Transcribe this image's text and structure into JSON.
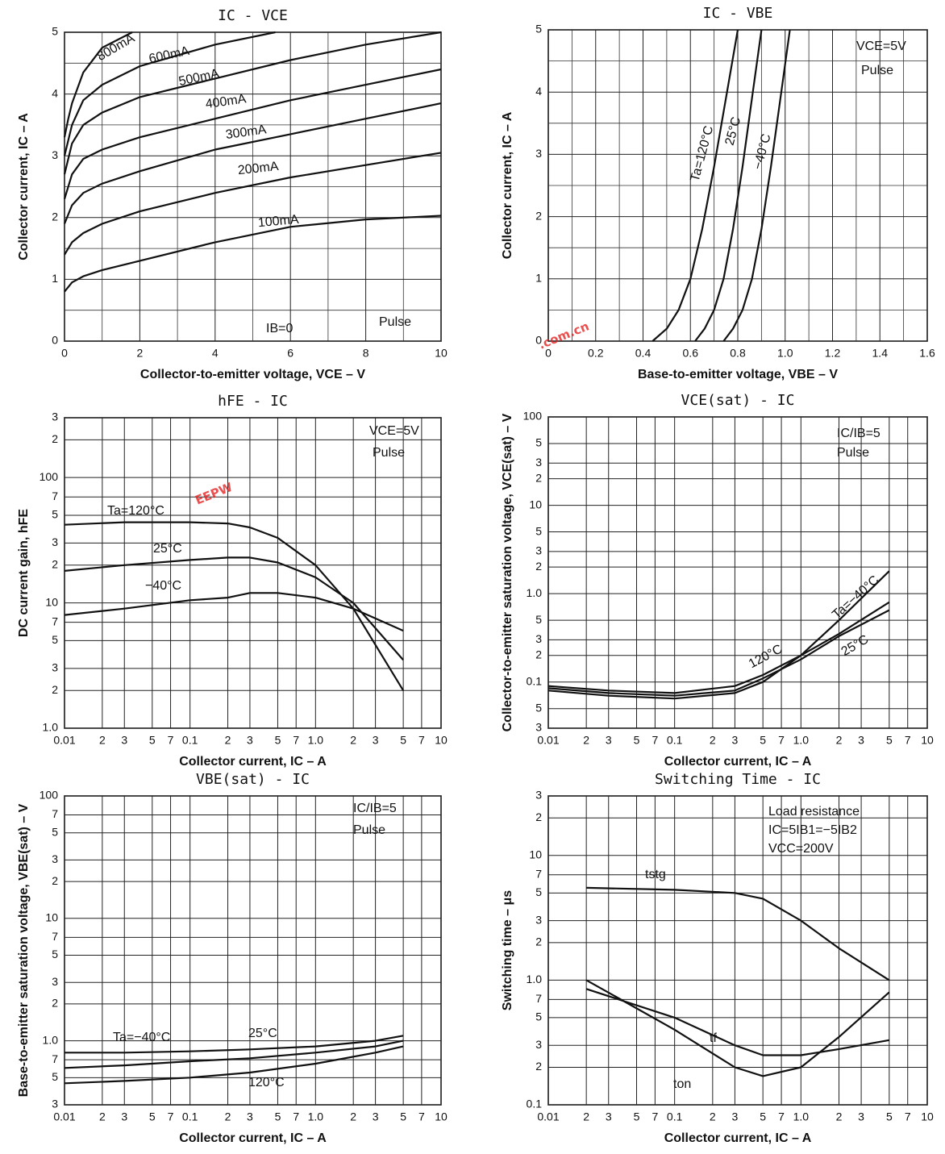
{
  "chart_data": [
    {
      "type": "line",
      "title": "IC - VCE",
      "x_label": "Collector-to-emitter voltage, VCE – V",
      "y_label": "Collector current, IC – A",
      "xlim": [
        0,
        10
      ],
      "ylim": [
        0,
        5
      ],
      "xticks": [
        0,
        2,
        4,
        6,
        8,
        10
      ],
      "yticks": [
        0,
        1,
        2,
        3,
        4,
        5
      ],
      "minor_xticks": [
        1,
        3,
        5,
        7,
        9
      ],
      "minor_yticks": [
        0.5,
        1.5,
        2.5,
        3.5,
        4.5
      ],
      "grid": true,
      "color": "#111111",
      "annotations": [
        "IB=0",
        "Pulse"
      ],
      "series": [
        {
          "name": "800mA",
          "color": "#111111",
          "x": [
            0,
            0.1,
            0.2,
            0.5,
            1,
            1.8
          ],
          "values": [
            3.3,
            3.6,
            3.85,
            4.35,
            4.75,
            5
          ]
        },
        {
          "name": "600mA",
          "color": "#111111",
          "x": [
            0,
            0.2,
            0.5,
            1,
            2,
            4,
            5.6
          ],
          "values": [
            3.0,
            3.5,
            3.9,
            4.15,
            4.45,
            4.8,
            5
          ]
        },
        {
          "name": "500mA",
          "color": "#111111",
          "x": [
            0,
            0.2,
            0.5,
            1,
            2,
            4,
            6,
            8,
            10
          ],
          "values": [
            2.7,
            3.2,
            3.5,
            3.7,
            3.95,
            4.25,
            4.55,
            4.8,
            5.0
          ]
        },
        {
          "name": "400mA",
          "color": "#111111",
          "x": [
            0,
            0.2,
            0.5,
            1,
            2,
            4,
            6,
            8,
            10
          ],
          "values": [
            2.3,
            2.7,
            2.95,
            3.1,
            3.3,
            3.6,
            3.9,
            4.15,
            4.4
          ]
        },
        {
          "name": "300mA",
          "color": "#111111",
          "x": [
            0,
            0.2,
            0.5,
            1,
            2,
            4,
            6,
            8,
            10
          ],
          "values": [
            1.9,
            2.2,
            2.4,
            2.55,
            2.75,
            3.1,
            3.35,
            3.6,
            3.85
          ]
        },
        {
          "name": "200mA",
          "color": "#111111",
          "x": [
            0,
            0.2,
            0.5,
            1,
            2,
            4,
            6,
            8,
            10
          ],
          "values": [
            1.4,
            1.6,
            1.75,
            1.9,
            2.1,
            2.4,
            2.65,
            2.85,
            3.05
          ]
        },
        {
          "name": "100mA",
          "color": "#111111",
          "x": [
            0,
            0.2,
            0.5,
            1,
            2,
            4,
            6,
            8,
            10
          ],
          "values": [
            0.8,
            0.95,
            1.05,
            1.15,
            1.3,
            1.6,
            1.85,
            1.97,
            2.03
          ]
        }
      ]
    },
    {
      "type": "line",
      "title": "IC - VBE",
      "x_label": "Base-to-emitter voltage, VBE – V",
      "y_label": "Collector current, IC – A",
      "xlim": [
        0,
        1.6
      ],
      "ylim": [
        0,
        5
      ],
      "xticks": [
        0,
        0.2,
        0.4,
        0.6,
        0.8,
        {
          "value": 1,
          "label": "1.0"
        },
        1.2,
        1.4,
        1.6
      ],
      "yticks": [
        0,
        1,
        2,
        3,
        4,
        5
      ],
      "minor_xticks": [
        0.1,
        0.3,
        0.5,
        0.7,
        0.9,
        1.1,
        1.3,
        1.5
      ],
      "minor_yticks": [
        0.5,
        1.5,
        2.5,
        3.5,
        4.5
      ],
      "grid": true,
      "color": "#111111",
      "annotations": [
        "VCE=5V",
        "Pulse"
      ],
      "series": [
        {
          "name": "Ta=120°C",
          "color": "#111111",
          "x": [
            0.44,
            0.5,
            0.55,
            0.6,
            0.65,
            0.7,
            0.75,
            0.8
          ],
          "values": [
            0,
            0.2,
            0.5,
            1,
            1.8,
            2.8,
            3.9,
            5
          ]
        },
        {
          "name": "25°C",
          "color": "#111111",
          "x": [
            0.62,
            0.66,
            0.7,
            0.74,
            0.78,
            0.82,
            0.86,
            0.9
          ],
          "values": [
            0,
            0.2,
            0.5,
            1,
            1.8,
            2.8,
            3.9,
            5
          ]
        },
        {
          "name": "−40°C",
          "color": "#111111",
          "x": [
            0.74,
            0.78,
            0.82,
            0.86,
            0.9,
            0.94,
            0.98,
            1.02
          ],
          "values": [
            0,
            0.2,
            0.5,
            1,
            1.8,
            2.8,
            3.9,
            5
          ]
        }
      ]
    },
    {
      "type": "line",
      "title": "hFE - IC",
      "x_label": "Collector current, IC – A",
      "y_label": "DC current gain, hFE",
      "log_x": true,
      "log_y": true,
      "xlim": [
        0.01,
        10
      ],
      "ylim": [
        1,
        300
      ],
      "xticks": [
        0.01,
        {
          "value": 0.02,
          "label": "2"
        },
        {
          "value": 0.03,
          "label": "3"
        },
        {
          "value": 0.05,
          "label": "5"
        },
        {
          "value": 0.07,
          "label": "7"
        },
        0.1,
        {
          "value": 0.2,
          "label": "2"
        },
        {
          "value": 0.3,
          "label": "3"
        },
        {
          "value": 0.5,
          "label": "5"
        },
        {
          "value": 0.7,
          "label": "7"
        },
        {
          "value": 1,
          "label": "1.0"
        },
        2,
        3,
        5,
        7,
        10
      ],
      "yticks": [
        {
          "value": 1,
          "label": "1.0"
        },
        2,
        3,
        5,
        7,
        10,
        {
          "value": 20,
          "label": "2"
        },
        {
          "value": 30,
          "label": "3"
        },
        {
          "value": 50,
          "label": "5"
        },
        {
          "value": 70,
          "label": "7"
        },
        100,
        {
          "value": 200,
          "label": "2"
        },
        {
          "value": 300,
          "label": "3"
        }
      ],
      "grid": true,
      "color": "#111111",
      "annotations": [
        "VCE=5V",
        "Pulse"
      ],
      "series": [
        {
          "name": "Ta=120°C",
          "color": "#111111",
          "x": [
            0.01,
            0.03,
            0.1,
            0.2,
            0.3,
            0.5,
            1,
            2,
            5
          ],
          "values": [
            42,
            44,
            44,
            43,
            40,
            33,
            20,
            9,
            2
          ]
        },
        {
          "name": "25°C",
          "color": "#111111",
          "x": [
            0.01,
            0.03,
            0.1,
            0.2,
            0.3,
            0.5,
            1,
            2,
            5
          ],
          "values": [
            18,
            20,
            22,
            23,
            23,
            21,
            16,
            10,
            3.5
          ]
        },
        {
          "name": "−40°C",
          "color": "#111111",
          "x": [
            0.01,
            0.03,
            0.1,
            0.2,
            0.3,
            0.5,
            1,
            2,
            5
          ],
          "values": [
            8,
            9,
            10.5,
            11,
            12,
            12,
            11,
            9,
            6
          ]
        }
      ]
    },
    {
      "type": "line",
      "title": "VCE(sat) - IC",
      "x_label": "Collector current, IC – A",
      "y_label": "Collector-to-emitter saturation voltage, VCE(sat) – V",
      "log_x": true,
      "log_y": true,
      "xlim": [
        0.01,
        10
      ],
      "ylim": [
        0.03,
        100
      ],
      "xticks": [
        0.01,
        {
          "value": 0.02,
          "label": "2"
        },
        {
          "value": 0.03,
          "label": "3"
        },
        {
          "value": 0.05,
          "label": "5"
        },
        {
          "value": 0.07,
          "label": "7"
        },
        0.1,
        {
          "value": 0.2,
          "label": "2"
        },
        {
          "value": 0.3,
          "label": "3"
        },
        {
          "value": 0.5,
          "label": "5"
        },
        {
          "value": 0.7,
          "label": "7"
        },
        {
          "value": 1,
          "label": "1.0"
        },
        2,
        3,
        5,
        7,
        10
      ],
      "yticks": [
        {
          "value": 0.03,
          "label": "3"
        },
        {
          "value": 0.05,
          "label": "5"
        },
        0.1,
        {
          "value": 0.2,
          "label": "2"
        },
        {
          "value": 0.3,
          "label": "3"
        },
        {
          "value": 0.5,
          "label": "5"
        },
        {
          "value": 1,
          "label": "1.0"
        },
        2,
        3,
        5,
        10,
        {
          "value": 20,
          "label": "2"
        },
        {
          "value": 30,
          "label": "3"
        },
        {
          "value": 50,
          "label": "5"
        },
        100
      ],
      "grid": true,
      "color": "#111111",
      "annotations": [
        "IC/IB=5",
        "Pulse"
      ],
      "series": [
        {
          "name": "Ta=−40°C",
          "color": "#111111",
          "x": [
            0.01,
            0.03,
            0.1,
            0.3,
            0.5,
            1,
            2,
            5
          ],
          "values": [
            0.08,
            0.07,
            0.065,
            0.075,
            0.1,
            0.2,
            0.5,
            1.8
          ]
        },
        {
          "name": "120°C",
          "color": "#111111",
          "x": [
            0.01,
            0.03,
            0.1,
            0.3,
            0.5,
            1,
            2,
            5
          ],
          "values": [
            0.09,
            0.08,
            0.075,
            0.09,
            0.12,
            0.2,
            0.35,
            0.8
          ]
        },
        {
          "name": "25°C",
          "color": "#111111",
          "x": [
            0.01,
            0.03,
            0.1,
            0.3,
            0.5,
            1,
            2,
            5
          ],
          "values": [
            0.085,
            0.075,
            0.07,
            0.08,
            0.11,
            0.18,
            0.33,
            0.65
          ]
        }
      ]
    },
    {
      "type": "line",
      "title": "VBE(sat) - IC",
      "x_label": "Collector current, IC – A",
      "y_label": "Base-to-emitter saturation voltage, VBE(sat) – V",
      "log_x": true,
      "log_y": true,
      "xlim": [
        0.01,
        10
      ],
      "ylim": [
        0.3,
        100
      ],
      "xticks": [
        0.01,
        {
          "value": 0.02,
          "label": "2"
        },
        {
          "value": 0.03,
          "label": "3"
        },
        {
          "value": 0.05,
          "label": "5"
        },
        {
          "value": 0.07,
          "label": "7"
        },
        0.1,
        {
          "value": 0.2,
          "label": "2"
        },
        {
          "value": 0.3,
          "label": "3"
        },
        {
          "value": 0.5,
          "label": "5"
        },
        {
          "value": 0.7,
          "label": "7"
        },
        {
          "value": 1,
          "label": "1.0"
        },
        2,
        3,
        5,
        7,
        10
      ],
      "yticks": [
        {
          "value": 0.3,
          "label": "3"
        },
        {
          "value": 0.5,
          "label": "5"
        },
        {
          "value": 0.7,
          "label": "7"
        },
        {
          "value": 1,
          "label": "1.0"
        },
        2,
        3,
        5,
        7,
        10,
        {
          "value": 20,
          "label": "2"
        },
        {
          "value": 30,
          "label": "3"
        },
        {
          "value": 50,
          "label": "5"
        },
        {
          "value": 70,
          "label": "7"
        },
        100
      ],
      "grid": true,
      "color": "#111111",
      "annotations": [
        "IC/IB=5",
        "Pulse"
      ],
      "series": [
        {
          "name": "Ta=−40°C",
          "color": "#111111",
          "x": [
            0.01,
            0.03,
            0.1,
            0.3,
            1,
            3,
            5
          ],
          "values": [
            0.8,
            0.8,
            0.82,
            0.85,
            0.9,
            1.0,
            1.1
          ]
        },
        {
          "name": "25°C",
          "color": "#111111",
          "x": [
            0.01,
            0.03,
            0.1,
            0.3,
            1,
            3,
            5
          ],
          "values": [
            0.6,
            0.63,
            0.68,
            0.72,
            0.8,
            0.9,
            1.0
          ]
        },
        {
          "name": "120°C",
          "color": "#111111",
          "x": [
            0.01,
            0.03,
            0.1,
            0.3,
            1,
            3,
            5
          ],
          "values": [
            0.45,
            0.47,
            0.5,
            0.55,
            0.65,
            0.8,
            0.9
          ]
        }
      ]
    },
    {
      "type": "line",
      "title": "Switching Time - IC",
      "x_label": "Collector current, IC – A",
      "y_label": "Switching time – μs",
      "log_x": true,
      "log_y": true,
      "xlim": [
        0.01,
        10
      ],
      "ylim": [
        0.1,
        30
      ],
      "xticks": [
        0.01,
        {
          "value": 0.02,
          "label": "2"
        },
        {
          "value": 0.03,
          "label": "3"
        },
        {
          "value": 0.05,
          "label": "5"
        },
        {
          "value": 0.07,
          "label": "7"
        },
        0.1,
        {
          "value": 0.2,
          "label": "2"
        },
        {
          "value": 0.3,
          "label": "3"
        },
        {
          "value": 0.5,
          "label": "5"
        },
        {
          "value": 0.7,
          "label": "7"
        },
        {
          "value": 1,
          "label": "1.0"
        },
        2,
        3,
        5,
        7,
        10
      ],
      "yticks": [
        0.1,
        {
          "value": 0.2,
          "label": "2"
        },
        {
          "value": 0.3,
          "label": "3"
        },
        {
          "value": 0.5,
          "label": "5"
        },
        {
          "value": 0.7,
          "label": "7"
        },
        {
          "value": 1,
          "label": "1.0"
        },
        2,
        3,
        5,
        7,
        10,
        {
          "value": 20,
          "label": "2"
        },
        {
          "value": 30,
          "label": "3"
        }
      ],
      "grid": true,
      "color": "#111111",
      "annotations": [
        "Load resistance",
        "IC=5IB1=−5IB2",
        "VCC=200V"
      ],
      "series": [
        {
          "name": "tstg",
          "color": "#111111",
          "x": [
            0.02,
            0.1,
            0.3,
            0.5,
            1,
            2,
            5
          ],
          "values": [
            5.5,
            5.3,
            5,
            4.5,
            3,
            1.8,
            1.0
          ]
        },
        {
          "name": "tf",
          "color": "#111111",
          "x": [
            0.02,
            0.1,
            0.3,
            0.5,
            1,
            2,
            5
          ],
          "values": [
            0.85,
            0.5,
            0.3,
            0.25,
            0.25,
            0.28,
            0.33
          ]
        },
        {
          "name": "ton",
          "color": "#111111",
          "x": [
            0.02,
            0.1,
            0.3,
            0.5,
            1,
            2,
            5
          ],
          "values": [
            1.0,
            0.4,
            0.2,
            0.17,
            0.2,
            0.35,
            0.8
          ]
        }
      ]
    }
  ],
  "watermark": {
    "logo": "EEPW",
    "domain": ".com.cn"
  }
}
